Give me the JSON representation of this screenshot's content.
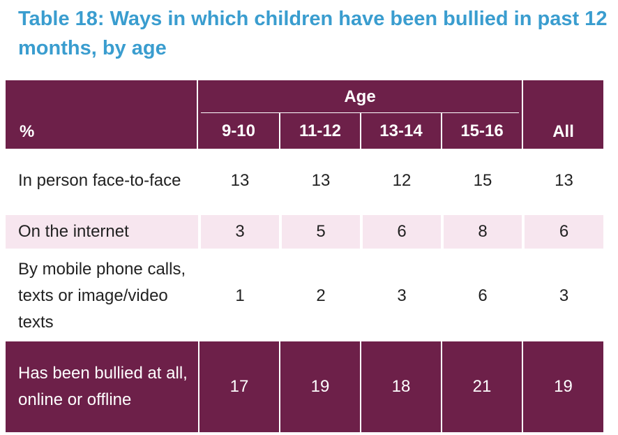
{
  "title": "Table 18: Ways in which children have been bullied in past 12 months, by age",
  "table": {
    "header": {
      "label_col": "%",
      "group": "Age",
      "age_cols": [
        "9-10",
        "11-12",
        "13-14",
        "15-16"
      ],
      "all_col": "All"
    },
    "rows": [
      {
        "label": "In person face-to-face",
        "values": [
          "13",
          "13",
          "12",
          "15",
          "13"
        ]
      },
      {
        "label": "On the internet",
        "values": [
          "3",
          "5",
          "6",
          "8",
          "6"
        ]
      },
      {
        "label": "By mobile phone calls, texts or image/video texts",
        "values": [
          "1",
          "2",
          "3",
          "6",
          "3"
        ]
      },
      {
        "label": "Has been bullied at all, online or offline",
        "values": [
          "17",
          "19",
          "18",
          "21",
          "19"
        ]
      }
    ]
  },
  "colors": {
    "title": "#3a9dcf",
    "header_bg": "#6d2049",
    "stripe_bg": "#f7e6ef",
    "header_text": "#ffffff"
  }
}
